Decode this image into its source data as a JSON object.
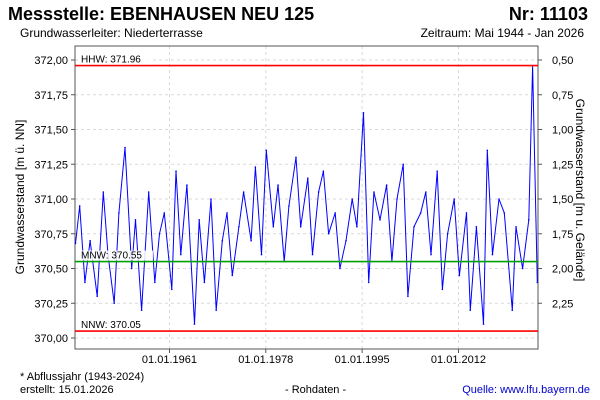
{
  "header": {
    "station": "Messstelle: EBENHAUSEN NEU 125",
    "number": "Nr: 11103",
    "aquifer": "Grundwasserleiter:  Niederterrasse",
    "period": "Zeitraum: Mai 1944 - Jan 2026"
  },
  "footer": {
    "note": "* Abflussjahr (1943-2024)",
    "created": "erstellt:  15.01.2026",
    "datatype": "- Rohdaten -",
    "source": "Quelle: www.lfu.bayern.de"
  },
  "colors": {
    "series": "#0000ff",
    "reference_lines": "#ff0000",
    "mnw_line": "#00a000",
    "grid": "#d9d9d9"
  },
  "chart_data": {
    "type": "line",
    "ylabel": "Grundwasserstand [m ü. NN]",
    "y2label": "Grundwasserstand [m u. Gelände]",
    "ylim": [
      370.0,
      372.0
    ],
    "yticks": [
      "370,00",
      "370,25",
      "370,50",
      "370,75",
      "371,00",
      "371,25",
      "371,50",
      "371,75",
      "372,00"
    ],
    "y2lim": [
      2.5,
      0.5
    ],
    "y2ticks": [
      "0,50",
      "0,75",
      "1,00",
      "1,25",
      "1,50",
      "1,75",
      "2,00",
      "2,25"
    ],
    "xlim": [
      "1944-05-01",
      "2026-01-15"
    ],
    "xticks": [
      "01.01.1961",
      "01.01.1978",
      "01.01.1995",
      "01.01.2012"
    ],
    "grid": true,
    "reference_lines": [
      {
        "label": "HHW: 371.96",
        "value": 371.96,
        "color": "#ff0000"
      },
      {
        "label": "MNW: 370.55",
        "value": 370.55,
        "color": "#00a000"
      },
      {
        "label": "NNW: 370.05",
        "value": 370.05,
        "color": "#ff0000"
      }
    ],
    "series": [
      {
        "color": "#0000ff",
        "x": [
          "1944-06-01",
          "1945-03-01",
          "1946-02-01",
          "1947-01-01",
          "1948-04-01",
          "1949-05-01",
          "1950-03-01",
          "1951-04-01",
          "1952-02-01",
          "1953-03-01",
          "1954-05-01",
          "1955-01-01",
          "1956-02-01",
          "1957-05-01",
          "1958-06-01",
          "1959-04-01",
          "1960-02-01",
          "1961-06-01",
          "1962-03-01",
          "1963-01-01",
          "1964-02-01",
          "1965-06-01",
          "1966-04-01",
          "1967-03-01",
          "1968-05-01",
          "1969-04-01",
          "1970-05-01",
          "1971-03-01",
          "1972-02-01",
          "1973-04-01",
          "1974-02-01",
          "1975-06-01",
          "1976-03-01",
          "1977-04-01",
          "1978-02-01",
          "1979-05-01",
          "1980-03-01",
          "1981-04-01",
          "1982-02-01",
          "1983-05-01",
          "1984-03-01",
          "1985-06-01",
          "1986-04-01",
          "1987-05-01",
          "1988-03-01",
          "1989-02-01",
          "1990-04-01",
          "1991-02-01",
          "1992-03-01",
          "1993-04-01",
          "1994-02-01",
          "1995-04-01",
          "1996-03-01",
          "1997-02-01",
          "1998-03-01",
          "1999-05-01",
          "2000-04-01",
          "2001-03-01",
          "2002-04-01",
          "2003-02-01",
          "2004-03-01",
          "2005-05-01",
          "2006-04-01",
          "2007-03-01",
          "2008-04-01",
          "2009-03-01",
          "2010-02-01",
          "2011-04-01",
          "2012-03-01",
          "2013-06-01",
          "2014-02-01",
          "2015-03-01",
          "2016-06-01",
          "2017-02-01",
          "2018-01-01",
          "2019-03-01",
          "2020-02-01",
          "2021-07-01",
          "2022-03-01",
          "2023-05-01",
          "2024-06-01",
          "2025-02-01",
          "2025-12-01"
        ],
        "y": [
          370.68,
          370.95,
          370.4,
          370.7,
          370.3,
          371.05,
          370.6,
          370.25,
          370.9,
          371.37,
          370.5,
          370.85,
          370.2,
          371.05,
          370.4,
          370.75,
          370.9,
          370.35,
          371.2,
          370.6,
          371.1,
          370.1,
          370.85,
          370.4,
          371.0,
          370.2,
          370.7,
          370.9,
          370.45,
          370.8,
          371.05,
          370.7,
          371.23,
          370.6,
          371.35,
          370.8,
          371.1,
          370.55,
          370.95,
          371.3,
          370.8,
          371.15,
          370.6,
          371.05,
          371.2,
          370.75,
          370.9,
          370.5,
          370.7,
          371.0,
          370.8,
          371.62,
          370.4,
          371.05,
          370.85,
          371.1,
          370.55,
          371.0,
          371.25,
          370.3,
          370.8,
          370.9,
          371.05,
          370.6,
          371.2,
          370.35,
          370.75,
          371.0,
          370.45,
          370.9,
          370.2,
          370.8,
          370.1,
          371.35,
          370.6,
          371.0,
          370.9,
          370.2,
          370.8,
          370.5,
          370.85,
          371.96,
          370.4
        ]
      }
    ]
  }
}
